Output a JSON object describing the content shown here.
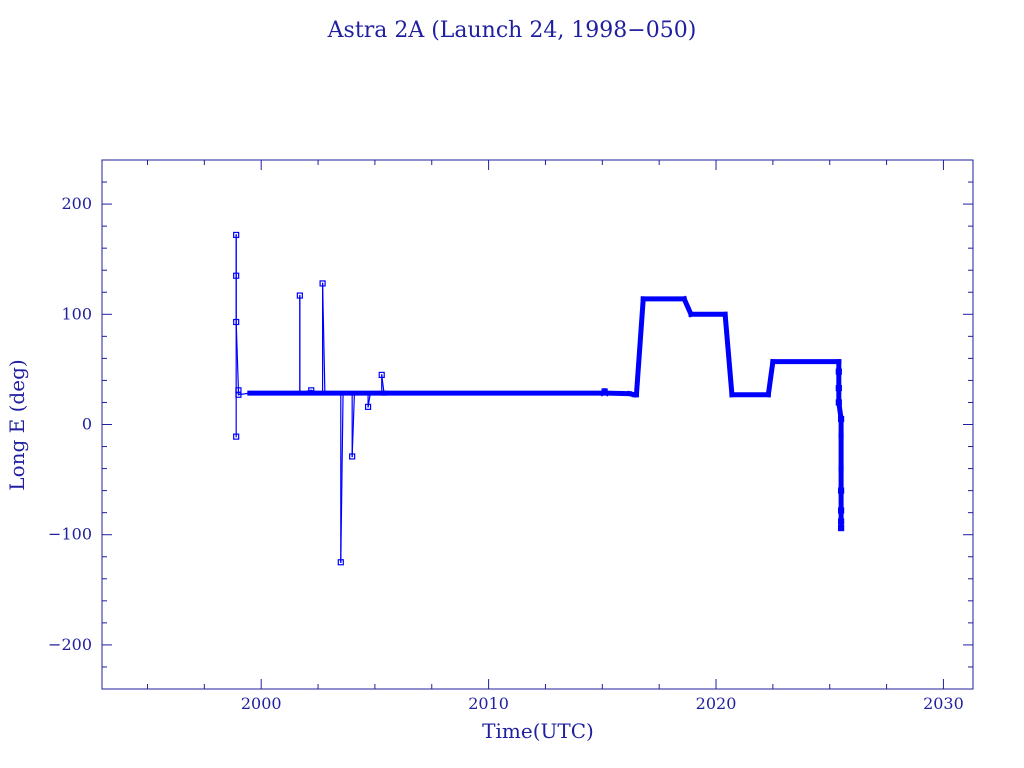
{
  "chart_data": {
    "type": "line",
    "title": "Astra 2A (Launch 24, 1998−050)",
    "xlabel": "Time(UTC)",
    "ylabel": "Long E (deg)",
    "xlim": [
      1993.0,
      2031.3
    ],
    "ylim": [
      -240,
      240
    ],
    "x_ticks": [
      {
        "value": 2000,
        "label": "2000"
      },
      {
        "value": 2010,
        "label": "2010"
      },
      {
        "value": 2020,
        "label": "2020"
      },
      {
        "value": 2030,
        "label": "2030"
      }
    ],
    "y_ticks": [
      {
        "value": 200,
        "label": "200"
      },
      {
        "value": 100,
        "label": "100"
      },
      {
        "value": 0,
        "label": "0"
      },
      {
        "value": -100,
        "label": "−100"
      },
      {
        "value": -200,
        "label": "−200"
      }
    ],
    "grid": false,
    "colors": {
      "data": "#0000ff",
      "axes": "#1f1fa0"
    },
    "series": [
      {
        "points": [
          [
            1998.9,
            -11
          ],
          [
            1998.9,
            172
          ],
          [
            1998.9,
            135
          ],
          [
            1998.9,
            93
          ],
          [
            1999.0,
            31
          ],
          [
            1999.0,
            27
          ],
          [
            1999.5,
            28.5
          ],
          [
            2001.7,
            28.5
          ],
          [
            2001.7,
            117
          ],
          [
            2001.7,
            29
          ],
          [
            2002.2,
            31
          ],
          [
            2002.5,
            29
          ],
          [
            2002.7,
            29
          ],
          [
            2002.7,
            128
          ],
          [
            2002.8,
            29
          ],
          [
            2003.3,
            28.5
          ],
          [
            2003.5,
            28.5
          ],
          [
            2003.5,
            -100
          ],
          [
            2003.5,
            -125
          ],
          [
            2003.6,
            28.5
          ],
          [
            2004.0,
            28.5
          ],
          [
            2004.0,
            -29
          ],
          [
            2004.1,
            28.5
          ],
          [
            2004.7,
            28.5
          ],
          [
            2004.7,
            16
          ],
          [
            2004.8,
            28.5
          ],
          [
            2005.3,
            28.5
          ],
          [
            2005.3,
            45
          ],
          [
            2005.4,
            28.5
          ],
          [
            2015.0,
            28.5
          ],
          [
            2015.1,
            30
          ],
          [
            2015.2,
            28.5
          ],
          [
            2016.2,
            28
          ],
          [
            2016.4,
            27
          ],
          [
            2016.5,
            27
          ],
          [
            2016.8,
            114
          ],
          [
            2018.6,
            114
          ],
          [
            2018.9,
            100
          ],
          [
            2020.4,
            100
          ],
          [
            2020.7,
            27
          ],
          [
            2022.3,
            27
          ],
          [
            2022.5,
            57
          ],
          [
            2025.4,
            57
          ],
          [
            2025.4,
            48
          ],
          [
            2025.4,
            33
          ],
          [
            2025.4,
            20
          ],
          [
            2025.5,
            5
          ],
          [
            2025.5,
            -10
          ],
          [
            2025.5,
            -40
          ],
          [
            2025.5,
            -60
          ],
          [
            2025.5,
            -78
          ],
          [
            2025.5,
            -88
          ],
          [
            2025.5,
            -94
          ]
        ],
        "markers": [
          [
            1998.9,
            -11
          ],
          [
            1998.9,
            172
          ],
          [
            1998.9,
            135
          ],
          [
            1998.9,
            93
          ],
          [
            1999.0,
            31
          ],
          [
            1999.0,
            27
          ],
          [
            2001.7,
            117
          ],
          [
            2002.2,
            31
          ],
          [
            2002.7,
            128
          ],
          [
            2003.5,
            -125
          ],
          [
            2004.0,
            -29
          ],
          [
            2004.7,
            16
          ],
          [
            2005.3,
            45
          ],
          [
            2015.1,
            30
          ],
          [
            2025.4,
            48
          ],
          [
            2025.4,
            33
          ],
          [
            2025.4,
            20
          ],
          [
            2025.5,
            5
          ],
          [
            2025.5,
            -60
          ],
          [
            2025.5,
            -78
          ],
          [
            2025.5,
            -88
          ],
          [
            2025.5,
            -94
          ]
        ],
        "thick_from_year": 2005.4
      }
    ]
  }
}
